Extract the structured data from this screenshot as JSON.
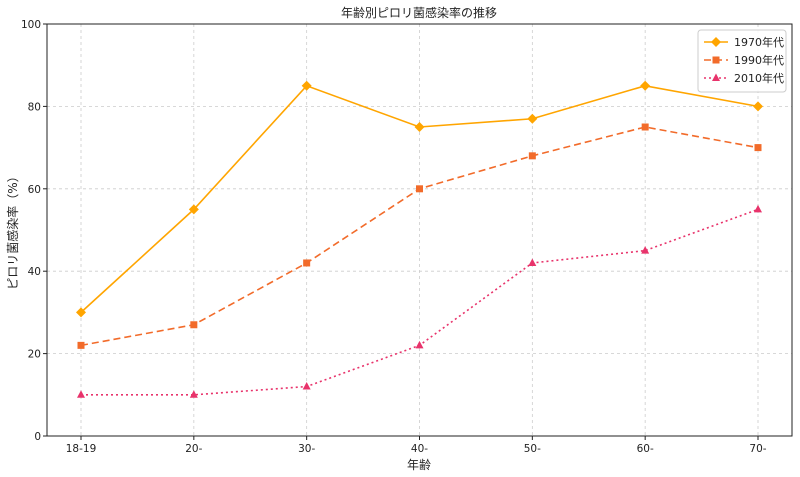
{
  "chart_data": {
    "type": "line",
    "title": "年齢別ピロリ菌感染率の推移",
    "xlabel": "年齢",
    "ylabel": "ピロリ菌感染率（%）",
    "categories": [
      "18-19",
      "20-",
      "30-",
      "40-",
      "50-",
      "60-",
      "70-"
    ],
    "ylim": [
      0,
      100
    ],
    "yticks": [
      0,
      20,
      40,
      60,
      80,
      100
    ],
    "grid": true,
    "legend_position": "top-right",
    "series": [
      {
        "name": "1970年代",
        "values": [
          30,
          55,
          85,
          75,
          77,
          85,
          80
        ],
        "color": "#FFA500",
        "line": "solid",
        "marker": "diamond"
      },
      {
        "name": "1990年代",
        "values": [
          22,
          27,
          42,
          60,
          68,
          75,
          70
        ],
        "color": "#F26B2A",
        "line": "dashed",
        "marker": "square"
      },
      {
        "name": "2010年代",
        "values": [
          10,
          10,
          12,
          22,
          42,
          45,
          55
        ],
        "color": "#E8336B",
        "line": "dotted",
        "marker": "triangle"
      }
    ]
  }
}
